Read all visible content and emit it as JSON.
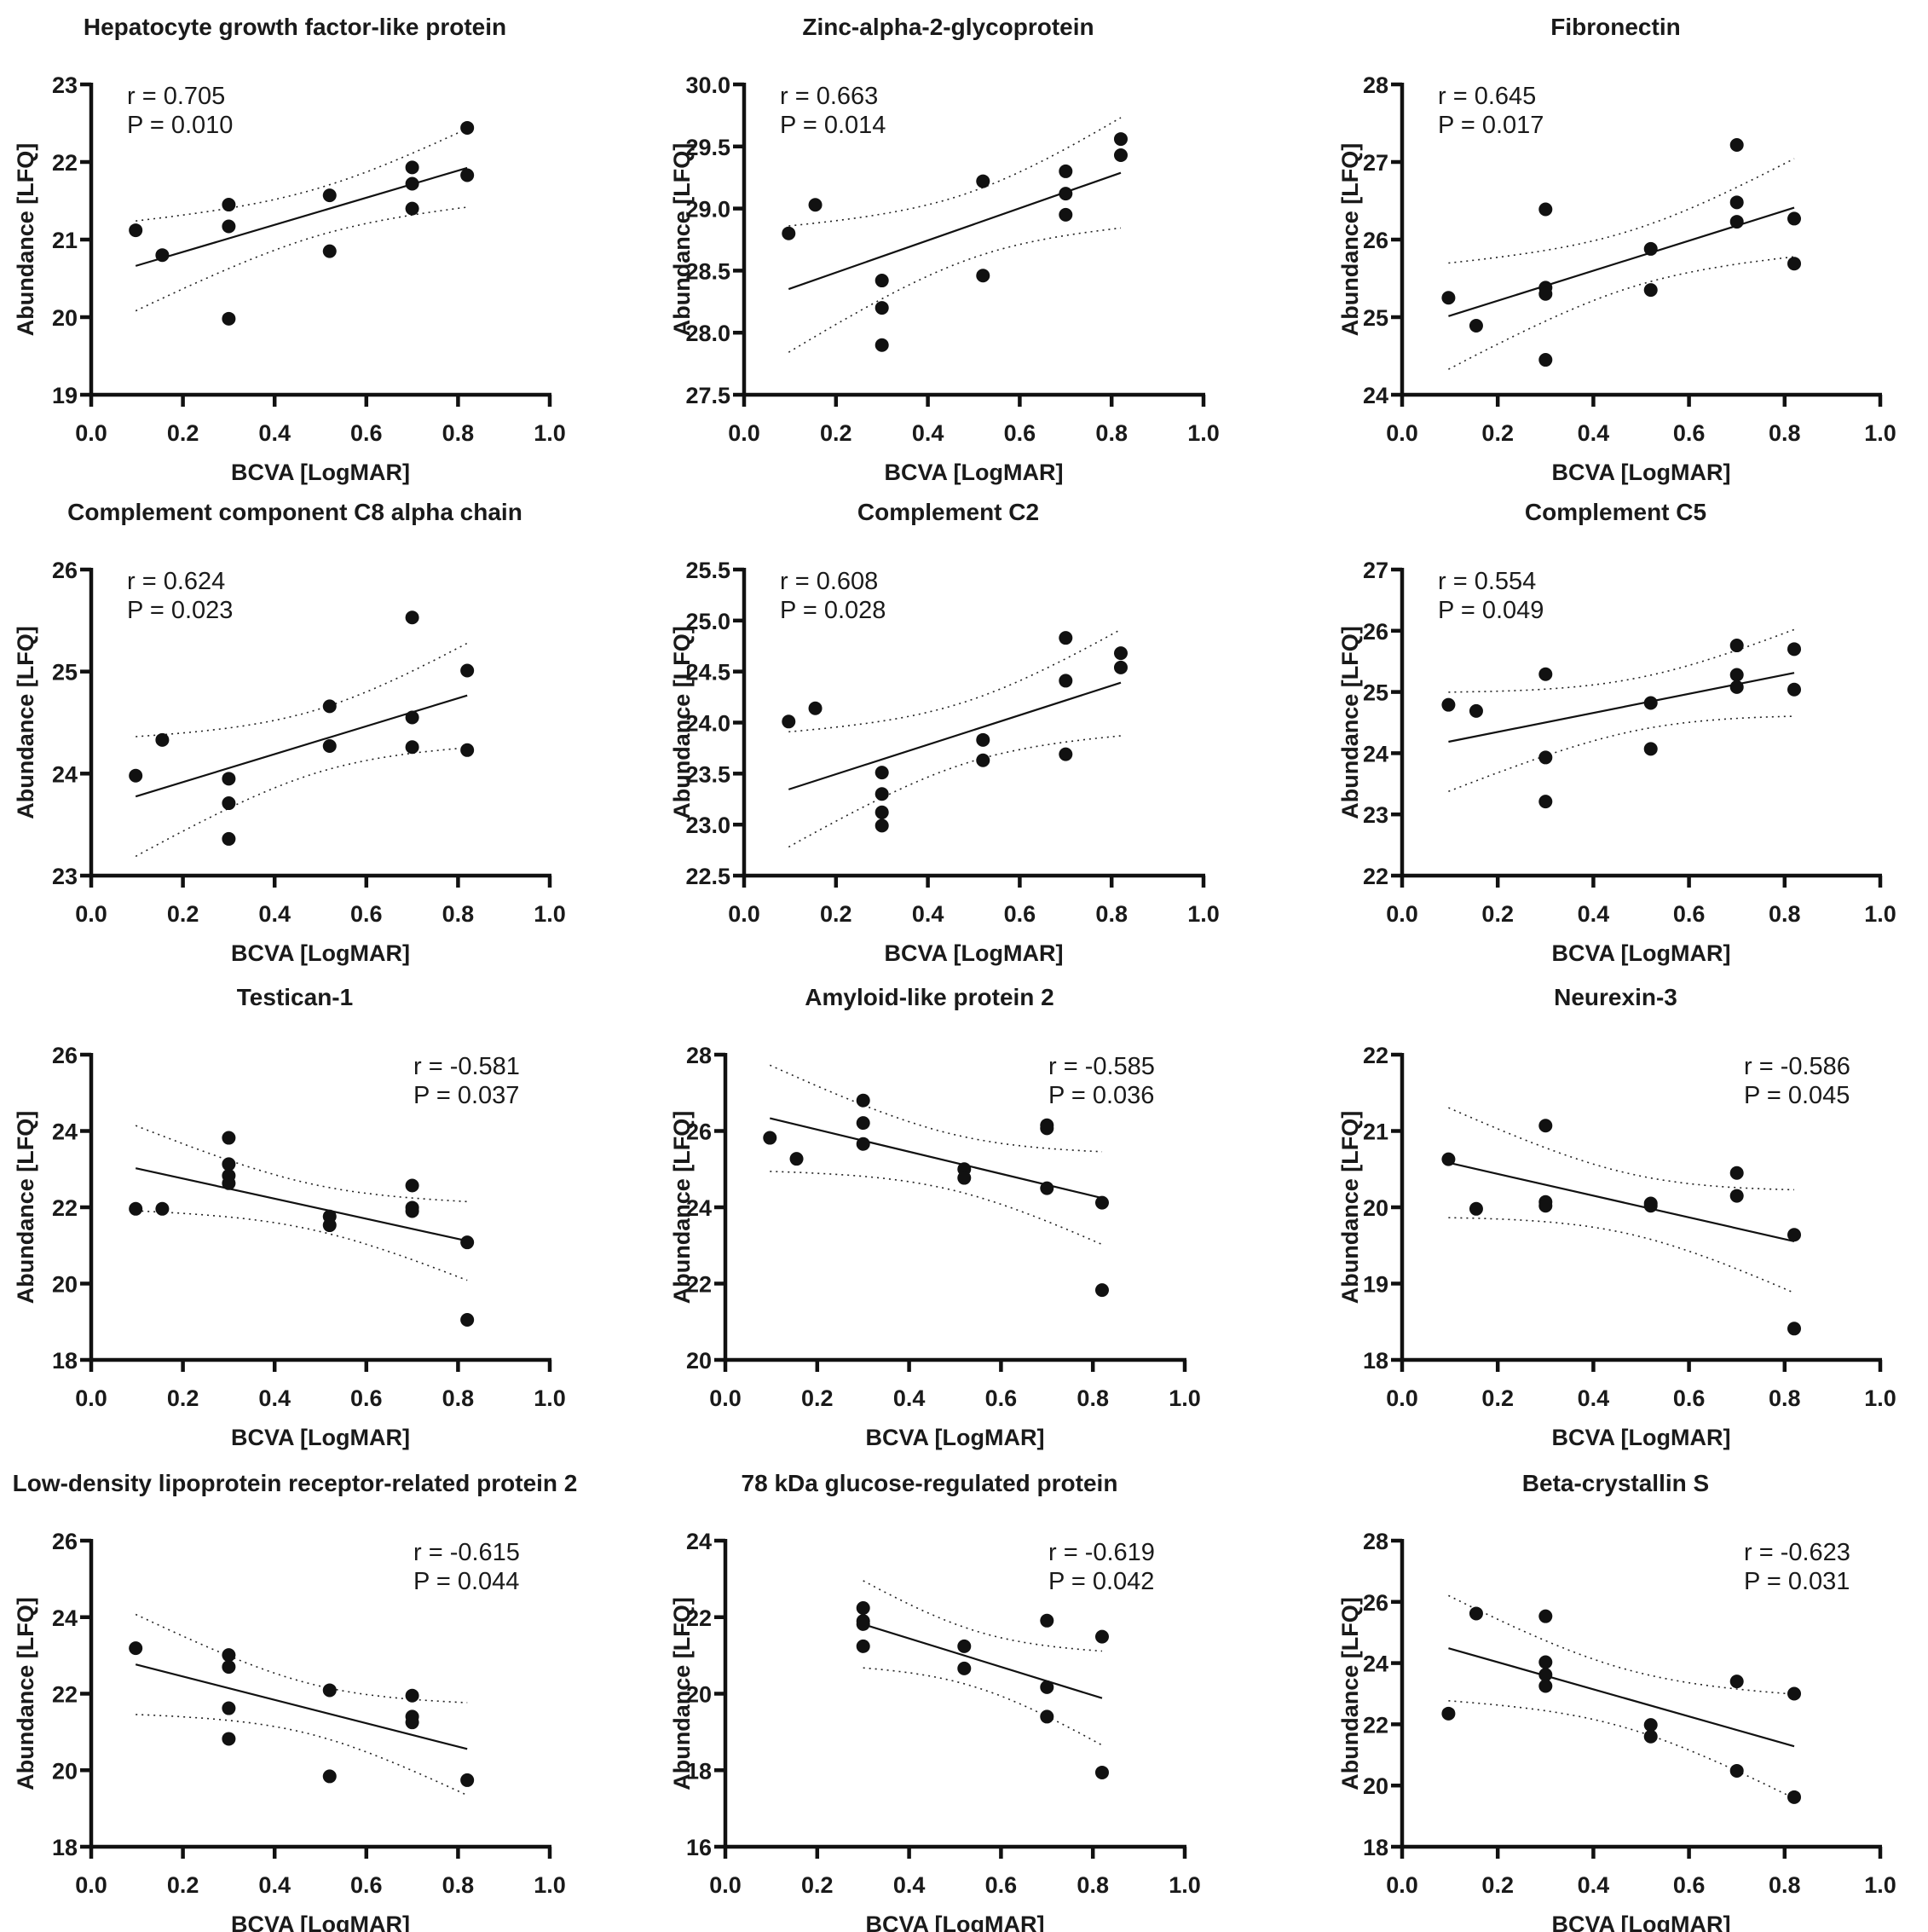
{
  "chart_data": [
    {
      "type": "scatter",
      "title": "Hepatocyte growth factor-like protein",
      "xlabel": "BCVA [LogMAR]",
      "ylabel": "Abundance [LFQ]",
      "xlim": [
        0.0,
        1.0
      ],
      "ylim": [
        19,
        23
      ],
      "xticks": [
        "0.0",
        "0.2",
        "0.4",
        "0.6",
        "0.8",
        "1.0"
      ],
      "yticks": [
        "19",
        "20",
        "21",
        "22",
        "23"
      ],
      "stats": {
        "r": "r = 0.705",
        "p": "P = 0.010",
        "position": "top-left"
      },
      "fit": "linear regression with 95% confidence band",
      "points": [
        [
          0.097,
          21.12
        ],
        [
          0.155,
          20.8
        ],
        [
          0.3,
          21.45
        ],
        [
          0.3,
          21.17
        ],
        [
          0.3,
          19.98
        ],
        [
          0.52,
          21.57
        ],
        [
          0.52,
          20.85
        ],
        [
          0.7,
          21.93
        ],
        [
          0.7,
          21.72
        ],
        [
          0.7,
          21.4
        ],
        [
          0.82,
          22.44
        ],
        [
          0.82,
          21.83
        ]
      ]
    },
    {
      "type": "scatter",
      "title": "Zinc-alpha-2-glycoprotein",
      "xlabel": "BCVA [LogMAR]",
      "ylabel": "Abundance [LFQ]",
      "xlim": [
        0.0,
        1.0
      ],
      "ylim": [
        27.5,
        30.0
      ],
      "xticks": [
        "0.0",
        "0.2",
        "0.4",
        "0.6",
        "0.8",
        "1.0"
      ],
      "yticks": [
        "27.5",
        "28.0",
        "28.5",
        "29.0",
        "29.5",
        "30.0"
      ],
      "stats": {
        "r": "r = 0.663",
        "p": "P = 0.014",
        "position": "top-left"
      },
      "fit": "linear regression with 95% confidence band",
      "points": [
        [
          0.097,
          28.8
        ],
        [
          0.155,
          29.03
        ],
        [
          0.3,
          28.42
        ],
        [
          0.3,
          28.2
        ],
        [
          0.3,
          27.9
        ],
        [
          0.52,
          29.22
        ],
        [
          0.52,
          28.46
        ],
        [
          0.7,
          29.3
        ],
        [
          0.7,
          29.12
        ],
        [
          0.7,
          28.95
        ],
        [
          0.82,
          29.56
        ],
        [
          0.82,
          29.43
        ]
      ]
    },
    {
      "type": "scatter",
      "title": "Fibronectin",
      "xlabel": "BCVA [LogMAR]",
      "ylabel": "Abundance [LFQ]",
      "xlim": [
        0.0,
        1.0
      ],
      "ylim": [
        24,
        28
      ],
      "xticks": [
        "0.0",
        "0.2",
        "0.4",
        "0.6",
        "0.8",
        "1.0"
      ],
      "yticks": [
        "24",
        "25",
        "26",
        "27",
        "28"
      ],
      "stats": {
        "r": "r = 0.645",
        "p": "P = 0.017",
        "position": "top-left"
      },
      "fit": "linear regression with 95% confidence band",
      "points": [
        [
          0.097,
          25.25
        ],
        [
          0.155,
          24.89
        ],
        [
          0.3,
          26.39
        ],
        [
          0.3,
          25.38
        ],
        [
          0.3,
          25.3
        ],
        [
          0.3,
          24.45
        ],
        [
          0.52,
          25.88
        ],
        [
          0.52,
          25.35
        ],
        [
          0.7,
          27.22
        ],
        [
          0.7,
          26.48
        ],
        [
          0.7,
          26.23
        ],
        [
          0.82,
          26.27
        ],
        [
          0.82,
          25.69
        ]
      ]
    },
    {
      "type": "scatter",
      "title": "Complement component C8 alpha chain",
      "xlabel": "BCVA [LogMAR]",
      "ylabel": "Abundance [LFQ]",
      "xlim": [
        0.0,
        1.0
      ],
      "ylim": [
        23,
        26
      ],
      "xticks": [
        "0.0",
        "0.2",
        "0.4",
        "0.6",
        "0.8",
        "1.0"
      ],
      "yticks": [
        "23",
        "24",
        "25",
        "26"
      ],
      "stats": {
        "r": "r = 0.624",
        "p": "P = 0.023",
        "position": "top-left"
      },
      "fit": "linear regression with 95% confidence band",
      "points": [
        [
          0.097,
          23.98
        ],
        [
          0.155,
          24.33
        ],
        [
          0.3,
          23.95
        ],
        [
          0.3,
          23.71
        ],
        [
          0.3,
          23.36
        ],
        [
          0.52,
          24.66
        ],
        [
          0.52,
          24.27
        ],
        [
          0.7,
          25.53
        ],
        [
          0.7,
          24.55
        ],
        [
          0.7,
          24.26
        ],
        [
          0.82,
          25.01
        ],
        [
          0.82,
          24.23
        ]
      ]
    },
    {
      "type": "scatter",
      "title": "Complement C2",
      "xlabel": "BCVA [LogMAR]",
      "ylabel": "Abundance [LFQ]",
      "xlim": [
        0.0,
        1.0
      ],
      "ylim": [
        22.5,
        25.5
      ],
      "xticks": [
        "0.0",
        "0.2",
        "0.4",
        "0.6",
        "0.8",
        "1.0"
      ],
      "yticks": [
        "22.5",
        "23.0",
        "23.5",
        "24.0",
        "24.5",
        "25.0",
        "25.5"
      ],
      "stats": {
        "r": "r = 0.608",
        "p": "P = 0.028",
        "position": "top-left"
      },
      "fit": "linear regression with 95% confidence band",
      "points": [
        [
          0.097,
          24.01
        ],
        [
          0.155,
          24.14
        ],
        [
          0.3,
          23.51
        ],
        [
          0.3,
          23.3
        ],
        [
          0.3,
          23.12
        ],
        [
          0.3,
          22.99
        ],
        [
          0.52,
          23.83
        ],
        [
          0.52,
          23.63
        ],
        [
          0.7,
          24.83
        ],
        [
          0.7,
          24.41
        ],
        [
          0.7,
          23.69
        ],
        [
          0.82,
          24.68
        ],
        [
          0.82,
          24.54
        ]
      ]
    },
    {
      "type": "scatter",
      "title": "Complement C5",
      "xlabel": "BCVA [LogMAR]",
      "ylabel": "Abundance [LFQ]",
      "xlim": [
        0.0,
        1.0
      ],
      "ylim": [
        22,
        27
      ],
      "xticks": [
        "0.0",
        "0.2",
        "0.4",
        "0.6",
        "0.8",
        "1.0"
      ],
      "yticks": [
        "22",
        "23",
        "24",
        "25",
        "26",
        "27"
      ],
      "stats": {
        "r": "r = 0.554",
        "p": "P = 0.049",
        "position": "top-left"
      },
      "fit": "linear regression with 95% confidence band",
      "points": [
        [
          0.097,
          24.79
        ],
        [
          0.155,
          24.69
        ],
        [
          0.3,
          25.29
        ],
        [
          0.3,
          23.93
        ],
        [
          0.3,
          23.21
        ],
        [
          0.52,
          24.82
        ],
        [
          0.52,
          24.07
        ],
        [
          0.7,
          25.76
        ],
        [
          0.7,
          25.28
        ],
        [
          0.7,
          25.08
        ],
        [
          0.82,
          25.7
        ],
        [
          0.82,
          25.04
        ]
      ]
    },
    {
      "type": "scatter",
      "title": "Testican-1",
      "xlabel": "BCVA [LogMAR]",
      "ylabel": "Abundance [LFQ]",
      "xlim": [
        0.0,
        1.0
      ],
      "ylim": [
        18,
        26
      ],
      "xticks": [
        "0.0",
        "0.2",
        "0.4",
        "0.6",
        "0.8",
        "1.0"
      ],
      "yticks": [
        "18",
        "20",
        "22",
        "24",
        "26"
      ],
      "stats": {
        "r": "r = -0.581",
        "p": "P = 0.037",
        "position": "top-right"
      },
      "fit": "linear regression with 95% confidence band",
      "points": [
        [
          0.097,
          21.96
        ],
        [
          0.155,
          21.96
        ],
        [
          0.3,
          23.82
        ],
        [
          0.3,
          23.13
        ],
        [
          0.3,
          22.83
        ],
        [
          0.3,
          22.63
        ],
        [
          0.52,
          21.76
        ],
        [
          0.52,
          21.53
        ],
        [
          0.7,
          22.57
        ],
        [
          0.7,
          21.99
        ],
        [
          0.7,
          21.9
        ],
        [
          0.82,
          21.08
        ],
        [
          0.82,
          19.05
        ]
      ]
    },
    {
      "type": "scatter",
      "title": "Amyloid-like protein 2",
      "xlabel": "BCVA [LogMAR]",
      "ylabel": "Abundance [LFQ]",
      "xlim": [
        0.0,
        1.0
      ],
      "ylim": [
        20,
        28
      ],
      "xticks": [
        "0.0",
        "0.2",
        "0.4",
        "0.6",
        "0.8",
        "1.0"
      ],
      "yticks": [
        "20",
        "22",
        "24",
        "26",
        "28"
      ],
      "stats": {
        "r": "r = -0.585",
        "p": "P = 0.036",
        "position": "top-right"
      },
      "fit": "linear regression with 95% confidence band",
      "points": [
        [
          0.097,
          25.82
        ],
        [
          0.155,
          25.27
        ],
        [
          0.3,
          26.8
        ],
        [
          0.3,
          26.21
        ],
        [
          0.3,
          25.66
        ],
        [
          0.52,
          25.0
        ],
        [
          0.52,
          24.77
        ],
        [
          0.7,
          26.15
        ],
        [
          0.7,
          26.07
        ],
        [
          0.7,
          24.5
        ],
        [
          0.82,
          24.12
        ],
        [
          0.82,
          21.83
        ]
      ]
    },
    {
      "type": "scatter",
      "title": "Neurexin-3",
      "xlabel": "BCVA [LogMAR]",
      "ylabel": "Abundance [LFQ]",
      "xlim": [
        0.0,
        1.0
      ],
      "ylim": [
        18,
        22
      ],
      "xticks": [
        "0.0",
        "0.2",
        "0.4",
        "0.6",
        "0.8",
        "1.0"
      ],
      "yticks": [
        "18",
        "19",
        "20",
        "21",
        "22"
      ],
      "stats": {
        "r": "r = -0.586",
        "p": "P = 0.045",
        "position": "top-right"
      },
      "fit": "linear regression with 95% confidence band",
      "points": [
        [
          0.097,
          20.63
        ],
        [
          0.155,
          19.98
        ],
        [
          0.3,
          21.07
        ],
        [
          0.3,
          20.07
        ],
        [
          0.3,
          20.02
        ],
        [
          0.52,
          20.05
        ],
        [
          0.52,
          20.02
        ],
        [
          0.7,
          20.45
        ],
        [
          0.7,
          20.15
        ],
        [
          0.82,
          19.64
        ],
        [
          0.82,
          18.41
        ]
      ]
    },
    {
      "type": "scatter",
      "title": "Low-density lipoprotein receptor-related protein 2",
      "xlabel": "BCVA [LogMAR]",
      "ylabel": "Abundance [LFQ]",
      "xlim": [
        0.0,
        1.0
      ],
      "ylim": [
        18,
        26
      ],
      "xticks": [
        "0.0",
        "0.2",
        "0.4",
        "0.6",
        "0.8",
        "1.0"
      ],
      "yticks": [
        "18",
        "20",
        "22",
        "24",
        "26"
      ],
      "stats": {
        "r": "r = -0.615",
        "p": "P = 0.044",
        "position": "top-right"
      },
      "fit": "linear regression with 95% confidence band",
      "points": [
        [
          0.097,
          23.19
        ],
        [
          0.3,
          23.01
        ],
        [
          0.3,
          22.7
        ],
        [
          0.3,
          21.62
        ],
        [
          0.3,
          20.82
        ],
        [
          0.52,
          22.09
        ],
        [
          0.52,
          19.84
        ],
        [
          0.7,
          21.95
        ],
        [
          0.7,
          21.4
        ],
        [
          0.7,
          21.25
        ],
        [
          0.82,
          19.74
        ]
      ]
    },
    {
      "type": "scatter",
      "title": "78 kDa glucose-regulated protein",
      "xlabel": "BCVA [LogMAR]",
      "ylabel": "Abundance [LFQ]",
      "xlim": [
        0.0,
        1.0
      ],
      "ylim": [
        16,
        24
      ],
      "xticks": [
        "0.0",
        "0.2",
        "0.4",
        "0.6",
        "0.8",
        "1.0"
      ],
      "yticks": [
        "16",
        "18",
        "20",
        "22",
        "24"
      ],
      "stats": {
        "r": "r = -0.619",
        "p": "P = 0.042",
        "position": "top-right"
      },
      "fit": "linear regression with 95% confidence band",
      "points": [
        [
          0.3,
          22.24
        ],
        [
          0.3,
          21.9
        ],
        [
          0.3,
          21.82
        ],
        [
          0.3,
          21.24
        ],
        [
          0.52,
          21.24
        ],
        [
          0.52,
          20.66
        ],
        [
          0.7,
          21.91
        ],
        [
          0.7,
          20.17
        ],
        [
          0.7,
          19.4
        ],
        [
          0.82,
          21.49
        ],
        [
          0.82,
          17.94
        ]
      ]
    },
    {
      "type": "scatter",
      "title": "Beta-crystallin S",
      "xlabel": "BCVA [LogMAR]",
      "ylabel": "Abundance [LFQ]",
      "xlim": [
        0.0,
        1.0
      ],
      "ylim": [
        18,
        28
      ],
      "xticks": [
        "0.0",
        "0.2",
        "0.4",
        "0.6",
        "0.8",
        "1.0"
      ],
      "yticks": [
        "18",
        "20",
        "22",
        "24",
        "26",
        "28"
      ],
      "stats": {
        "r": "r = -0.623",
        "p": "P = 0.031",
        "position": "top-right"
      },
      "fit": "linear regression with 95% confidence band",
      "points": [
        [
          0.097,
          22.35
        ],
        [
          0.155,
          25.62
        ],
        [
          0.3,
          25.53
        ],
        [
          0.3,
          24.03
        ],
        [
          0.3,
          23.62
        ],
        [
          0.3,
          23.25
        ],
        [
          0.52,
          21.98
        ],
        [
          0.52,
          21.6
        ],
        [
          0.7,
          23.4
        ],
        [
          0.7,
          20.48
        ],
        [
          0.82,
          23.0
        ],
        [
          0.82,
          19.62
        ]
      ]
    }
  ]
}
